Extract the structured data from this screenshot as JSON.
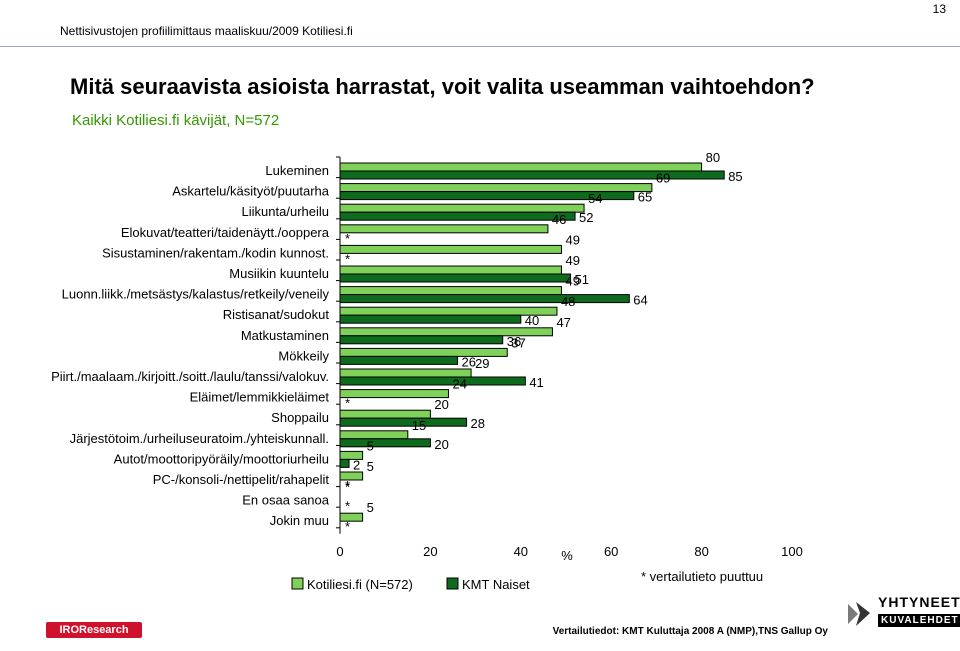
{
  "header": {
    "subheader": "Nettisivustojen profiilimittaus maaliskuu/2009 Kotiliesi.fi",
    "page_number": "13"
  },
  "title": "Mitä seuraavista asioista harrastat, voit valita useamman vaihtoehdon?",
  "subtitle": "Kaikki Kotiliesi.fi kävijät, N=572",
  "footer": {
    "source_note": "Vertailutiedot: KMT Kuluttaja 2008 A (NMP),TNS Gallup Oy",
    "logo_left": "IROResearch",
    "logo_right_line1": "YHTYNEET",
    "logo_right_line2": "KUVALEHDET"
  },
  "colors": {
    "series1": "#7fd15a",
    "series2": "#0e6b1e",
    "subtitle": "#339900"
  },
  "chart_data": {
    "type": "bar",
    "orientation": "horizontal",
    "categories": [
      "Lukeminen",
      "Askartelu/käsityöt/puutarha",
      "Liikunta/urheilu",
      "Elokuvat/teatteri/taidenäytt./ooppera",
      "Sisustaminen/rakentam./kodin kunnost.",
      "Musiikin kuuntelu",
      "Luonn.liikk./metsästys/kalastus/retkeily/veneily",
      "Ristisanat/sudokut",
      "Matkustaminen",
      "Mökkeily",
      "Piirt./maalaam./kirjoitt./soitt./laulu/tanssi/valokuv.",
      "Eläimet/lemmikkieläimet",
      "Shoppailu",
      "Järjestötoim./urheiluseuratoim./yhteiskunnall.",
      "Autot/moottoripyöräily/moottoriurheilu",
      "PC-/konsoli-/nettipelit/rahapelit",
      "En osaa sanoa",
      "Jokin muu"
    ],
    "series": [
      {
        "name": "Kotiliesi.fi (N=572)",
        "values": [
          80,
          69,
          54,
          46,
          49,
          49,
          49,
          48,
          47,
          37,
          29,
          24,
          20,
          15,
          5,
          5,
          0,
          5
        ],
        "labels": [
          "80",
          "69",
          "54",
          "46",
          "49",
          "49",
          "49",
          "48",
          "47",
          "37",
          "29",
          "24",
          "20",
          "15",
          "5",
          "5",
          "*",
          "5"
        ]
      },
      {
        "name": "KMT Naiset",
        "values": [
          85,
          65,
          52,
          0,
          0,
          51,
          64,
          40,
          36,
          26,
          41,
          0,
          28,
          20,
          2,
          0,
          0,
          0
        ],
        "labels": [
          "85",
          "65",
          "52",
          "*",
          "*",
          "51",
          "64",
          "40",
          "36",
          "26",
          "41",
          "*",
          "28",
          "20",
          "2",
          "*",
          "*",
          "*"
        ]
      }
    ],
    "xlim": [
      0,
      100
    ],
    "xticks": [
      "0",
      "20",
      "40",
      "60",
      "80",
      "100"
    ],
    "xlabel": "%",
    "note": "* vertailutieto puuttuu",
    "legend_position": "bottom"
  }
}
